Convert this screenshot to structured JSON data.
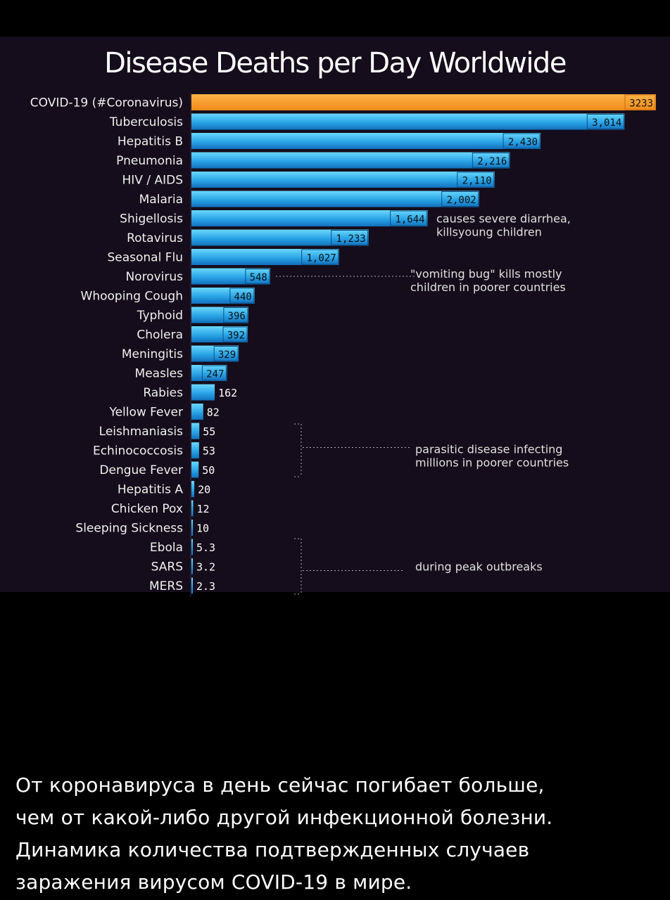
{
  "chart_data": {
    "type": "bar",
    "orientation": "horizontal",
    "title": "Disease Deaths per Day Worldwide",
    "categories": [
      "COVID-19 (#Coronavirus)",
      "Tuberculosis",
      "Hepatitis B",
      "Pneumonia",
      "HIV / AIDS",
      "Malaria",
      "Shigellosis",
      "Rotavirus",
      "Seasonal Flu",
      "Norovirus",
      "Whooping Cough",
      "Typhoid",
      "Cholera",
      "Meningitis",
      "Measles",
      "Rabies",
      "Yellow Fever",
      "Leishmaniasis",
      "Echinococcosis",
      "Dengue Fever",
      "Hepatitis A",
      "Chicken Pox",
      "Sleeping Sickness",
      "Ebola",
      "SARS",
      "MERS"
    ],
    "values": [
      3233,
      3014,
      2430,
      2216,
      2110,
      2002,
      1644,
      1233,
      1027,
      548,
      440,
      396,
      392,
      329,
      247,
      162,
      82,
      55,
      53,
      50,
      20,
      12,
      10,
      5.3,
      3.2,
      2.3
    ],
    "value_labels": [
      "3233",
      "3,014",
      "2,430",
      "2,216",
      "2,110",
      "2,002",
      "1,644",
      "1,233",
      "1,027",
      "548",
      "440",
      "396",
      "392",
      "329",
      "247",
      "162",
      "82",
      "55",
      "53",
      "50",
      "20",
      "12",
      "10",
      "5.3",
      "3.2",
      "2.3"
    ],
    "highlight_category": "COVID-19 (#Coronavirus)",
    "colors": {
      "highlight": "#f79b26",
      "bar_top": "#5fd3fb",
      "bar_bottom": "#1479c4",
      "background": "#150d1b"
    },
    "annotations": [
      {
        "lines": [
          "causes severe diarrhea,",
          "killsyoung children"
        ],
        "targets": [
          "Shigellosis",
          "Rotavirus"
        ]
      },
      {
        "lines": [
          "\"vomiting bug\" kills mostly",
          "children in poorer countries"
        ],
        "targets": [
          "Norovirus"
        ]
      },
      {
        "lines": [
          "parasitic disease infecting",
          "millions in poorer countries"
        ],
        "targets": [
          "Leishmaniasis",
          "Echinococcosis",
          "Dengue Fever"
        ]
      },
      {
        "lines": [
          "during peak outbreaks"
        ],
        "targets": [
          "Ebola",
          "SARS",
          "MERS"
        ]
      }
    ],
    "xlim": [
      0,
      3233
    ],
    "grid": false,
    "legend": "none"
  },
  "caption": {
    "lines": [
      "От коронавируса в день сейчас погибает больше,",
      "чем от какой-либо другой инфекционной болезни.",
      "Динамика количества подтвержденных случаев",
      "заражения вирусом COVID-19 в мире."
    ]
  }
}
